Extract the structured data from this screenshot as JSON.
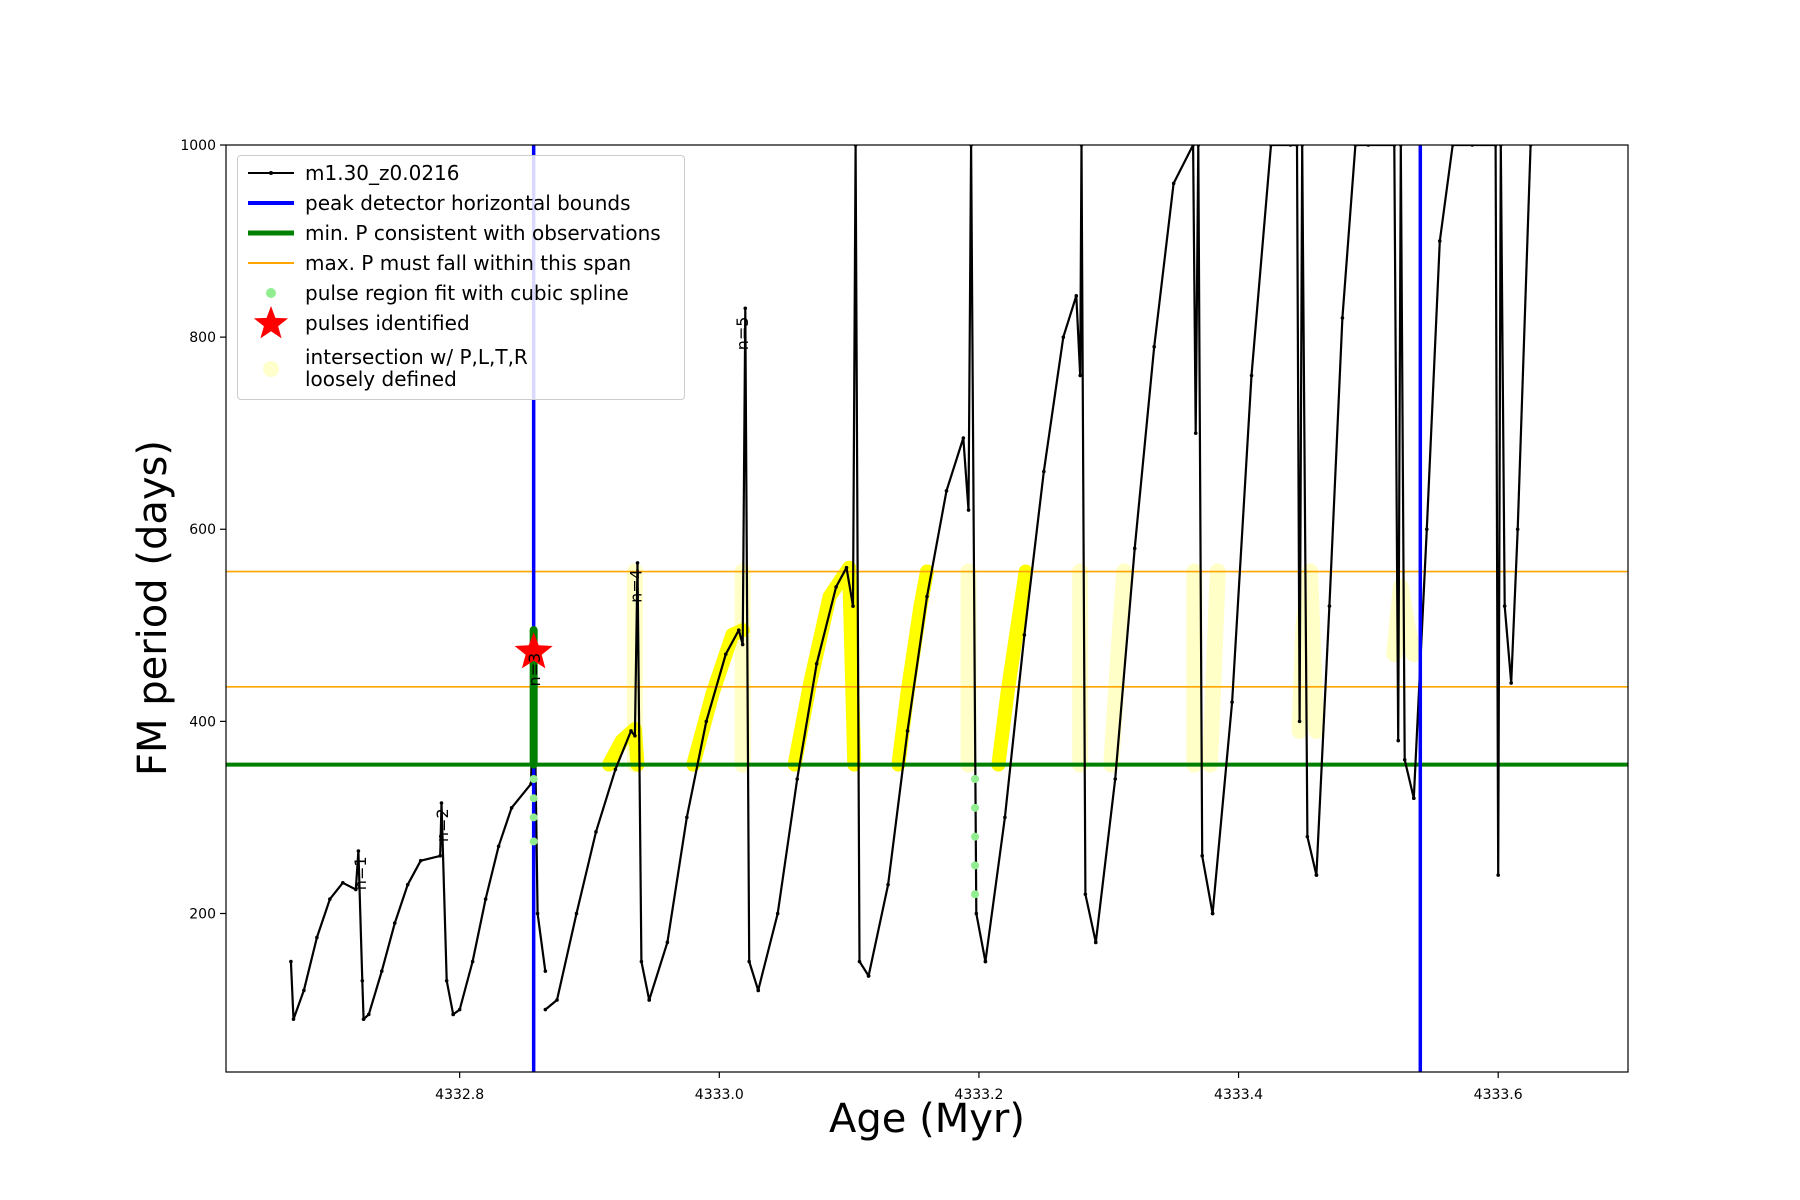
{
  "chart_data": {
    "type": "line",
    "xlabel": "Age (Myr)",
    "ylabel": "FM period (days)",
    "xlim": [
      4332.62,
      4333.7
    ],
    "ylim": [
      35,
      1000
    ],
    "xticks": [
      4332.8,
      4333.0,
      4333.2,
      4333.4,
      4333.6
    ],
    "xtick_labels": [
      "4332.8",
      "4333.0",
      "4333.2",
      "4333.4",
      "4333.6"
    ],
    "yticks": [
      200,
      400,
      600,
      800,
      1000
    ],
    "ytick_labels": [
      "200",
      "400",
      "600",
      "800",
      "1000"
    ],
    "grid": false,
    "legend_placement": "top-left",
    "series": [
      {
        "name": "m1.30_z0.0216",
        "color": "#000000",
        "cycles": [
          {
            "x": [
              4332.67,
              4332.672,
              4332.68,
              4332.69,
              4332.7,
              4332.71,
              4332.72,
              4332.722,
              4332.725,
              4332.726
            ],
            "y": [
              150,
              90,
              120,
              175,
              215,
              232,
              225,
              265,
              130,
              90
            ]
          },
          {
            "x": [
              4332.726,
              4332.73,
              4332.74,
              4332.75,
              4332.76,
              4332.77,
              4332.785,
              4332.786,
              4332.79,
              4332.795
            ],
            "y": [
              90,
              95,
              140,
              190,
              230,
              255,
              260,
              315,
              130,
              95
            ]
          },
          {
            "x": [
              4332.795,
              4332.8,
              4332.81,
              4332.82,
              4332.83,
              4332.84,
              4332.855,
              4332.857,
              4332.86,
              4332.866
            ],
            "y": [
              95,
              100,
              150,
              215,
              270,
              310,
              335,
              480,
              200,
              140
            ]
          },
          {
            "x": [
              4332.866,
              4332.875,
              4332.89,
              4332.905,
              4332.92,
              4332.932,
              4332.935,
              4332.937,
              4332.94,
              4332.946
            ],
            "y": [
              100,
              110,
              200,
              285,
              350,
              390,
              385,
              565,
              150,
              110
            ]
          },
          {
            "x": [
              4332.946,
              4332.96,
              4332.975,
              4332.99,
              4333.005,
              4333.015,
              4333.018,
              4333.02,
              4333.023,
              4333.03
            ],
            "y": [
              110,
              170,
              300,
              400,
              470,
              495,
              480,
              830,
              150,
              120
            ]
          },
          {
            "x": [
              4333.03,
              4333.045,
              4333.06,
              4333.075,
              4333.09,
              4333.098,
              4333.103,
              4333.105,
              4333.108,
              4333.115
            ],
            "y": [
              120,
              200,
              340,
              460,
              540,
              560,
              520,
              1000,
              150,
              135
            ]
          },
          {
            "x": [
              4333.115,
              4333.13,
              4333.145,
              4333.16,
              4333.175,
              4333.188,
              4333.192,
              4333.194,
              4333.198,
              4333.205
            ],
            "y": [
              135,
              230,
              390,
              530,
              640,
              695,
              620,
              1000,
              200,
              150
            ]
          },
          {
            "x": [
              4333.205,
              4333.22,
              4333.235,
              4333.25,
              4333.265,
              4333.275,
              4333.278,
              4333.279,
              4333.282,
              4333.29
            ],
            "y": [
              150,
              300,
              490,
              660,
              800,
              843,
              760,
              1000,
              220,
              170
            ]
          },
          {
            "x": [
              4333.29,
              4333.305,
              4333.32,
              4333.335,
              4333.35,
              4333.365,
              4333.367,
              4333.369,
              4333.372,
              4333.38
            ],
            "y": [
              170,
              340,
              580,
              790,
              960,
              1000,
              700,
              1000,
              260,
              200
            ]
          },
          {
            "x": [
              4333.38,
              4333.395,
              4333.41,
              4333.425,
              4333.44,
              4333.445,
              4333.447,
              4333.449,
              4333.453,
              4333.46
            ],
            "y": [
              200,
              420,
              760,
              1000,
              1000,
              1000,
              400,
              1000,
              280,
              240
            ]
          },
          {
            "x": [
              4333.46,
              4333.47,
              4333.48,
              4333.49,
              4333.5,
              4333.52,
              4333.523,
              4333.525,
              4333.528,
              4333.535
            ],
            "y": [
              240,
              520,
              820,
              1000,
              1000,
              1000,
              380,
              1000,
              360,
              320
            ]
          },
          {
            "x": [
              4333.535,
              4333.545,
              4333.555,
              4333.565,
              4333.58,
              4333.598,
              4333.6,
              4333.602,
              4333.605,
              4333.61,
              4333.615,
              4333.625
            ],
            "y": [
              320,
              600,
              900,
              1000,
              1000,
              1000,
              240,
              1000,
              520,
              440,
              600,
              1000
            ]
          }
        ]
      },
      {
        "name": "peak detector horizontal bounds",
        "color": "#0000ff",
        "x": [
          4332.857,
          4333.54
        ]
      },
      {
        "name": "min. P consistent with observations",
        "color": "#008000",
        "y": 355
      },
      {
        "name": "max. P must fall within this span",
        "color": "#ffa500",
        "y": [
          436,
          556
        ]
      },
      {
        "name": "pulse region fit with cubic spline",
        "color": "#90ee90",
        "points": [
          [
            4332.857,
            275
          ],
          [
            4332.857,
            300
          ],
          [
            4332.857,
            320
          ],
          [
            4332.857,
            340
          ],
          [
            4333.197,
            220
          ],
          [
            4333.197,
            250
          ],
          [
            4333.197,
            280
          ],
          [
            4333.197,
            310
          ],
          [
            4333.197,
            340
          ]
        ]
      },
      {
        "name": "pulses identified",
        "color": "#ff0000",
        "points": [
          [
            4332.857,
            472
          ]
        ]
      },
      {
        "name": "intersection w/ P,L,T,R\nloosely defined",
        "color": "#ffff00",
        "strong_segments": [
          {
            "x": [
              4332.915,
              4332.925,
              4332.935,
              4332.937
            ],
            "y": [
              355,
              380,
              392,
              355
            ]
          },
          {
            "x": [
              4332.98,
              4332.995,
              4333.01,
              4333.018
            ],
            "y": [
              355,
              430,
              490,
              495
            ]
          },
          {
            "x": [
              4333.058,
              4333.07,
              4333.085,
              4333.1,
              4333.104
            ],
            "y": [
              355,
              440,
              530,
              560,
              355
            ]
          },
          {
            "x": [
              4333.138,
              4333.145,
              4333.155,
              4333.16
            ],
            "y": [
              355,
              430,
              520,
              556
            ]
          },
          {
            "x": [
              4333.215,
              4333.222,
              4333.232,
              4333.236
            ],
            "y": [
              355,
              430,
              520,
              556
            ]
          }
        ],
        "faint_segments": [
          {
            "x": [
              4332.935,
              4332.935
            ],
            "y": [
              355,
              556
            ]
          },
          {
            "x": [
              4333.018,
              4333.018
            ],
            "y": [
              355,
              556
            ]
          },
          {
            "x": [
              4333.192,
              4333.192
            ],
            "y": [
              355,
              556
            ]
          },
          {
            "x": [
              4333.278,
              4333.278
            ],
            "y": [
              355,
              556
            ]
          },
          {
            "x": [
              4333.302,
              4333.308,
              4333.312
            ],
            "y": [
              355,
              480,
              556
            ]
          },
          {
            "x": [
              4333.366,
              4333.366
            ],
            "y": [
              355,
              556
            ]
          },
          {
            "x": [
              4333.378,
              4333.384
            ],
            "y": [
              355,
              556
            ]
          },
          {
            "x": [
              4333.447,
              4333.45,
              4333.455,
              4333.46
            ],
            "y": [
              390,
              500,
              556,
              390
            ]
          },
          {
            "x": [
              4333.52,
              4333.525,
              4333.53,
              4333.535
            ],
            "y": [
              470,
              540,
              500,
              470
            ]
          }
        ]
      }
    ],
    "annotations": [
      {
        "text": "n=1",
        "x": 4332.728,
        "y": 268
      },
      {
        "text": "n=2",
        "x": 4332.791,
        "y": 318
      },
      {
        "text": "n=3",
        "x": 4332.862,
        "y": 480
      },
      {
        "text": "n=4",
        "x": 4332.94,
        "y": 567
      },
      {
        "text": "n=5",
        "x": 4333.022,
        "y": 830
      }
    ]
  }
}
